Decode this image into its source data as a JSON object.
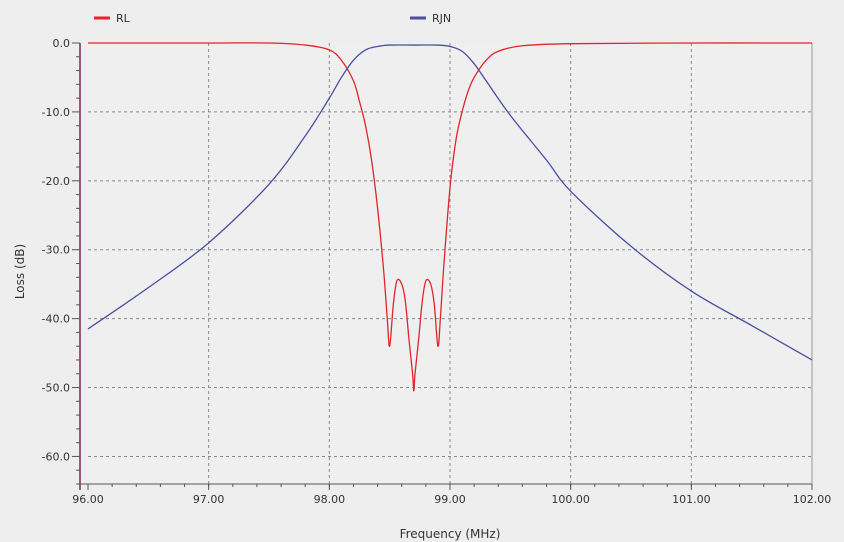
{
  "chart_data": {
    "type": "line",
    "title": "",
    "xlabel": "Frequency (MHz)",
    "ylabel": "Loss (dB)",
    "xlim": [
      96,
      102
    ],
    "ylim": [
      -64,
      0
    ],
    "x_ticks": [
      96,
      97,
      98,
      99,
      100,
      101,
      102
    ],
    "x_tick_labels": [
      "96.00",
      "97.00",
      "98.00",
      "99.00",
      "100.00",
      "101.00",
      "102.00"
    ],
    "y_ticks": [
      0,
      -10,
      -20,
      -30,
      -40,
      -50,
      -60
    ],
    "y_tick_labels": [
      "0.0",
      "-10.0",
      "-20.0",
      "-30.0",
      "-40.0",
      "-50.0",
      "-60.0"
    ],
    "grid": true,
    "legend_position": "top",
    "series": [
      {
        "name": "RL",
        "color": "#e0262b",
        "x": [
          96.0,
          97.0,
          97.5,
          97.8,
          98.0,
          98.1,
          98.2,
          98.25,
          98.3,
          98.35,
          98.4,
          98.45,
          98.48,
          98.5,
          98.53,
          98.56,
          98.6,
          98.63,
          98.66,
          98.69,
          98.7,
          98.71,
          98.74,
          98.77,
          98.8,
          98.84,
          98.87,
          98.9,
          98.92,
          98.95,
          99.0,
          99.05,
          99.1,
          99.15,
          99.2,
          99.3,
          99.4,
          99.6,
          100.0,
          101.0,
          102.0
        ],
        "y": [
          0.0,
          0.0,
          0.0,
          -0.3,
          -1.0,
          -2.5,
          -5.5,
          -8.5,
          -12.0,
          -17.0,
          -24.0,
          -33.0,
          -40.0,
          -44.0,
          -38.0,
          -34.5,
          -35.0,
          -37.5,
          -43.0,
          -48.0,
          -50.5,
          -48.0,
          -43.0,
          -37.5,
          -34.5,
          -35.0,
          -38.0,
          -44.0,
          -40.0,
          -32.0,
          -21.0,
          -14.0,
          -10.0,
          -7.0,
          -5.0,
          -2.5,
          -1.2,
          -0.4,
          -0.1,
          0.0,
          0.0
        ]
      },
      {
        "name": "RJN",
        "color": "#4a4fa0",
        "x": [
          96.0,
          96.5,
          97.0,
          97.5,
          97.8,
          98.0,
          98.1,
          98.2,
          98.3,
          98.4,
          98.5,
          98.7,
          98.9,
          99.0,
          99.1,
          99.2,
          99.3,
          99.5,
          99.8,
          100.0,
          100.5,
          101.0,
          101.5,
          102.0
        ],
        "y": [
          -41.5,
          -35.5,
          -29.0,
          -20.5,
          -13.5,
          -8.0,
          -5.0,
          -2.5,
          -1.0,
          -0.5,
          -0.3,
          -0.3,
          -0.3,
          -0.5,
          -1.2,
          -3.0,
          -5.5,
          -10.5,
          -17.0,
          -21.5,
          -29.5,
          -36.0,
          -41.0,
          -46.0
        ]
      }
    ]
  }
}
